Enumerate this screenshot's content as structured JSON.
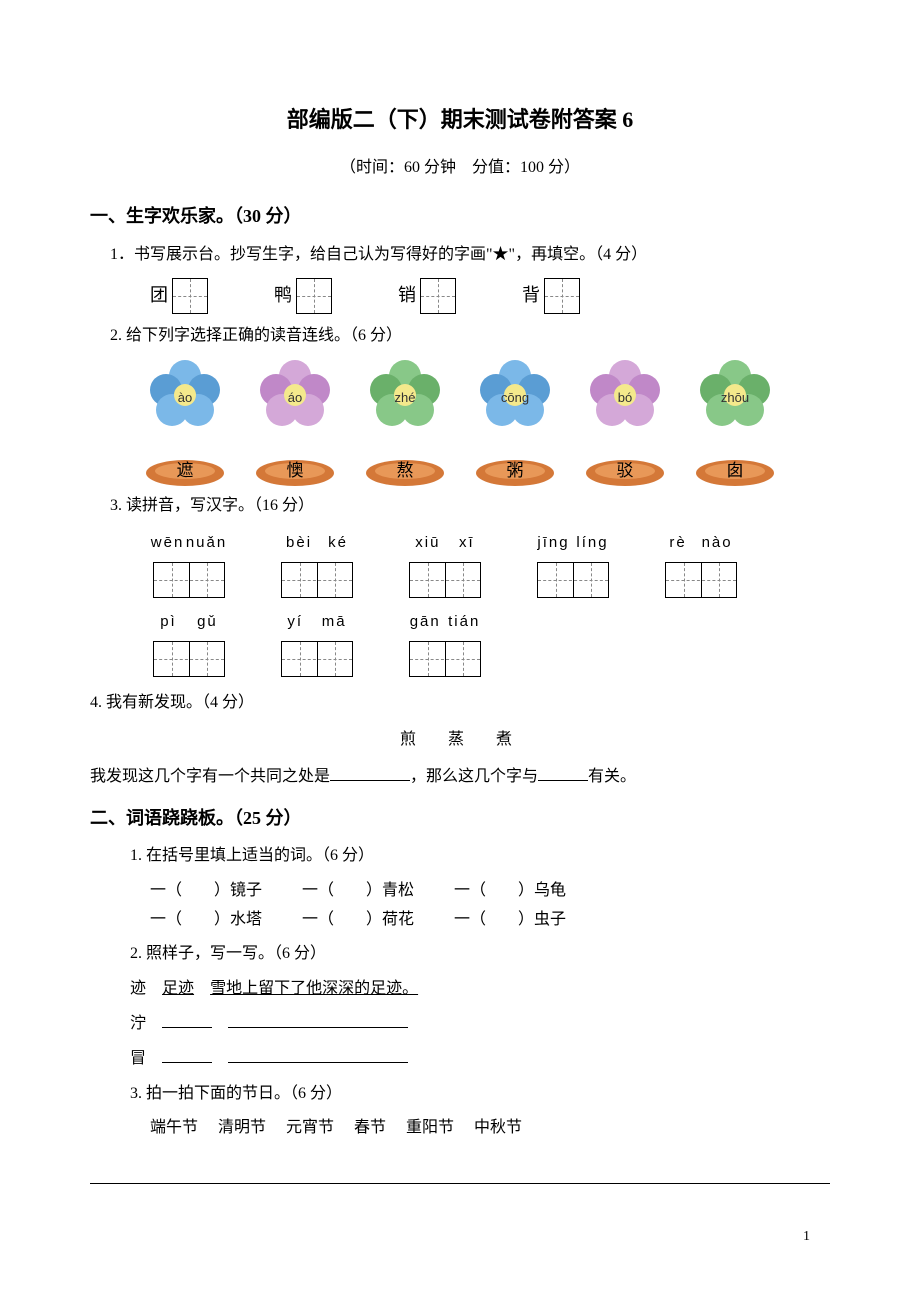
{
  "title": "部编版二（下）期末测试卷附答案 6",
  "subtitle": "（时间：60 分钟　分值：100 分）",
  "section1": {
    "header": "一、生字欢乐家。（30 分）",
    "q1": {
      "text": "1．书写展示台。抄写生字，给自己认为写得好的字画\"★\"，再填空。（4 分）",
      "chars": [
        "团",
        "鸭",
        "销",
        "背"
      ]
    },
    "q2": {
      "text": "2. 给下列字选择正确的读音连线。（6 分）",
      "flowers": [
        {
          "py": "ào",
          "petal_color": "#7bb8e8",
          "petal_alt": "#5a9dd4"
        },
        {
          "py": "áo",
          "petal_color": "#d4a8d8",
          "petal_alt": "#c088c8"
        },
        {
          "py": "zhé",
          "petal_color": "#88c888",
          "petal_alt": "#6ab06a"
        },
        {
          "py": "cōng",
          "petal_color": "#7bb8e8",
          "petal_alt": "#5a9dd4"
        },
        {
          "py": "bó",
          "petal_color": "#d4a8d8",
          "petal_alt": "#c088c8"
        },
        {
          "py": "zhōu",
          "petal_color": "#88c888",
          "petal_alt": "#6ab06a"
        }
      ],
      "plates": [
        {
          "ch": "遮",
          "bg": "#d47838",
          "inner": "#e89858"
        },
        {
          "ch": "懊",
          "bg": "#d47838",
          "inner": "#e89858"
        },
        {
          "ch": "熬",
          "bg": "#d47838",
          "inner": "#e89858"
        },
        {
          "ch": "粥",
          "bg": "#d47838",
          "inner": "#e89858"
        },
        {
          "ch": "驳",
          "bg": "#d47838",
          "inner": "#e89858"
        },
        {
          "ch": "囱",
          "bg": "#d47838",
          "inner": "#e89858"
        }
      ]
    },
    "q3": {
      "text": "3. 读拼音，写汉字。（16 分）",
      "items": [
        {
          "py1": "wēn",
          "py2": "nuǎn"
        },
        {
          "py1": "bèi",
          "py2": "ké"
        },
        {
          "py1": "xiū",
          "py2": "xī"
        },
        {
          "py1": "jīng",
          "py2": "líng"
        },
        {
          "py1": "rè",
          "py2": "nào"
        },
        {
          "py1": "pì",
          "py2": "gǔ"
        },
        {
          "py1": "yí",
          "py2": "mā"
        },
        {
          "py1": "gān",
          "py2": "tián"
        }
      ]
    },
    "q4": {
      "text": "4. 我有新发现。（4 分）",
      "chars": "煎　蒸　煮",
      "sentence_a": "我发现这几个字有一个共同之处是",
      "sentence_b": "，那么这几个字与",
      "sentence_c": "有关。"
    }
  },
  "section2": {
    "header": "二、词语跷跷板。（25 分）",
    "q1": {
      "text": "1. 在括号里填上适当的词。（6 分）",
      "row1": [
        "一（　　）镜子",
        "一（　　）青松",
        "一（　　）乌龟"
      ],
      "row2": [
        "一（　　）水塔",
        "一（　　）荷花",
        "一（　　）虫子"
      ]
    },
    "q2": {
      "text": "2. 照样子，写一写。（6 分）",
      "example_char": "迹",
      "example_word": "足迹",
      "example_sentence": "雪地上留下了他深深的足迹。",
      "lines": [
        "泞",
        "冒"
      ]
    },
    "q3": {
      "text": "3. 拍一拍下面的节日。（6 分）",
      "items": "端午节　 清明节　 元宵节　 春节　 重阳节　 中秋节"
    }
  },
  "page_number": "1"
}
